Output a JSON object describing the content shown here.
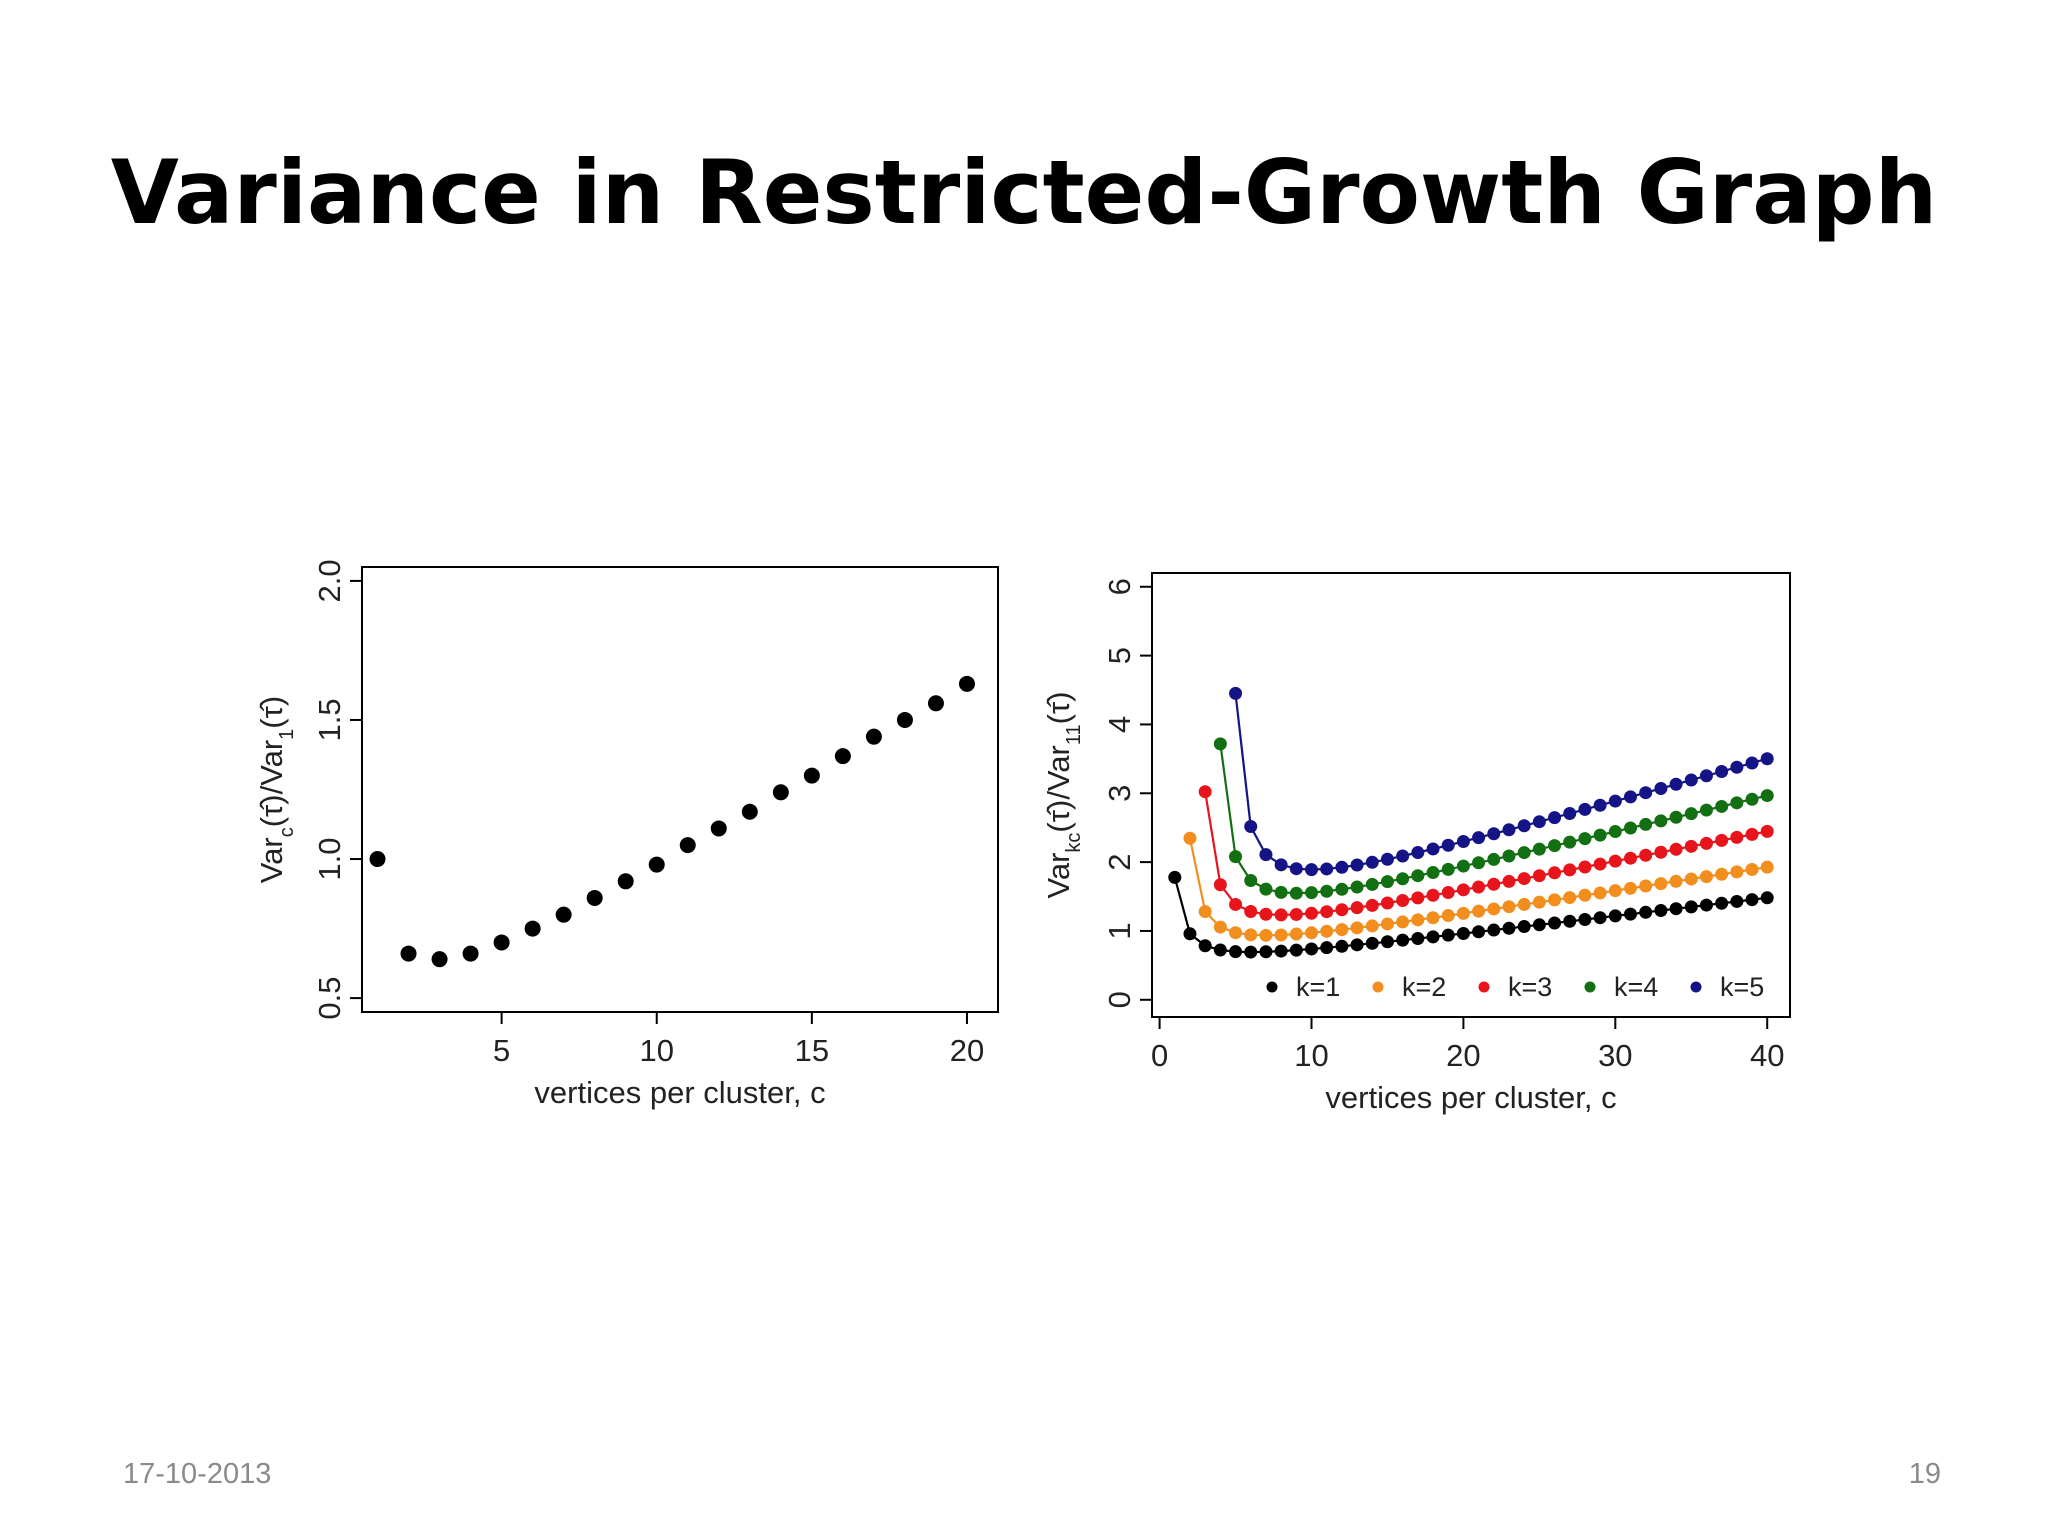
{
  "slide": {
    "title": "Variance in Restricted-Growth Graph",
    "date": "17-10-2013",
    "page_number": "19"
  },
  "chart_data": [
    {
      "type": "scatter",
      "title": "",
      "xlabel": "vertices per cluster, c",
      "ylabel_parts": {
        "main": "Var",
        "sub": "c",
        "mid": "(τ̂)/Var",
        "sub2": "1",
        "end": "(τ̂)"
      },
      "xlim": [
        0.5,
        21
      ],
      "ylim": [
        0.45,
        2.05
      ],
      "xticks": [
        5,
        10,
        15,
        20
      ],
      "yticks": [
        0.5,
        1.0,
        1.5,
        2.0
      ],
      "ytick_labels": [
        "0.5",
        "1.0",
        "1.5",
        "2.0"
      ],
      "grid": false,
      "color": "#000000",
      "x": [
        1,
        2,
        3,
        4,
        5,
        6,
        7,
        8,
        9,
        10,
        11,
        12,
        13,
        14,
        15,
        16,
        17,
        18,
        19,
        20
      ],
      "y": [
        1.0,
        0.66,
        0.64,
        0.66,
        0.7,
        0.75,
        0.8,
        0.86,
        0.92,
        0.98,
        1.05,
        1.11,
        1.17,
        1.24,
        1.3,
        1.37,
        1.44,
        1.5,
        1.56,
        1.63
      ]
    },
    {
      "type": "line",
      "title": "",
      "xlabel": "vertices per cluster, c",
      "ylabel_parts": {
        "main": "Var",
        "sub": "kc",
        "mid": "(τ̂)/Var",
        "sub2": "11",
        "end": "(τ̂)"
      },
      "xlim": [
        -0.5,
        41.5
      ],
      "ylim": [
        -0.25,
        6.2
      ],
      "xticks": [
        0,
        10,
        20,
        30,
        40
      ],
      "yticks": [
        0,
        1,
        2,
        3,
        4,
        5,
        6
      ],
      "grid": false,
      "legend_position": "bottom-right",
      "series": [
        {
          "name": "k=1",
          "k": 1,
          "color": "#000000",
          "a": 1.0
        },
        {
          "name": "k=2",
          "k": 2,
          "color": "#f28e1e",
          "a": 1.3
        },
        {
          "name": "k=3",
          "k": 3,
          "color": "#e8141c",
          "a": 1.65
        },
        {
          "name": "k=4",
          "k": 4,
          "color": "#127012",
          "a": 2.0
        },
        {
          "name": "k=5",
          "k": 5,
          "color": "#141487",
          "a": 2.36
        }
      ]
    }
  ]
}
